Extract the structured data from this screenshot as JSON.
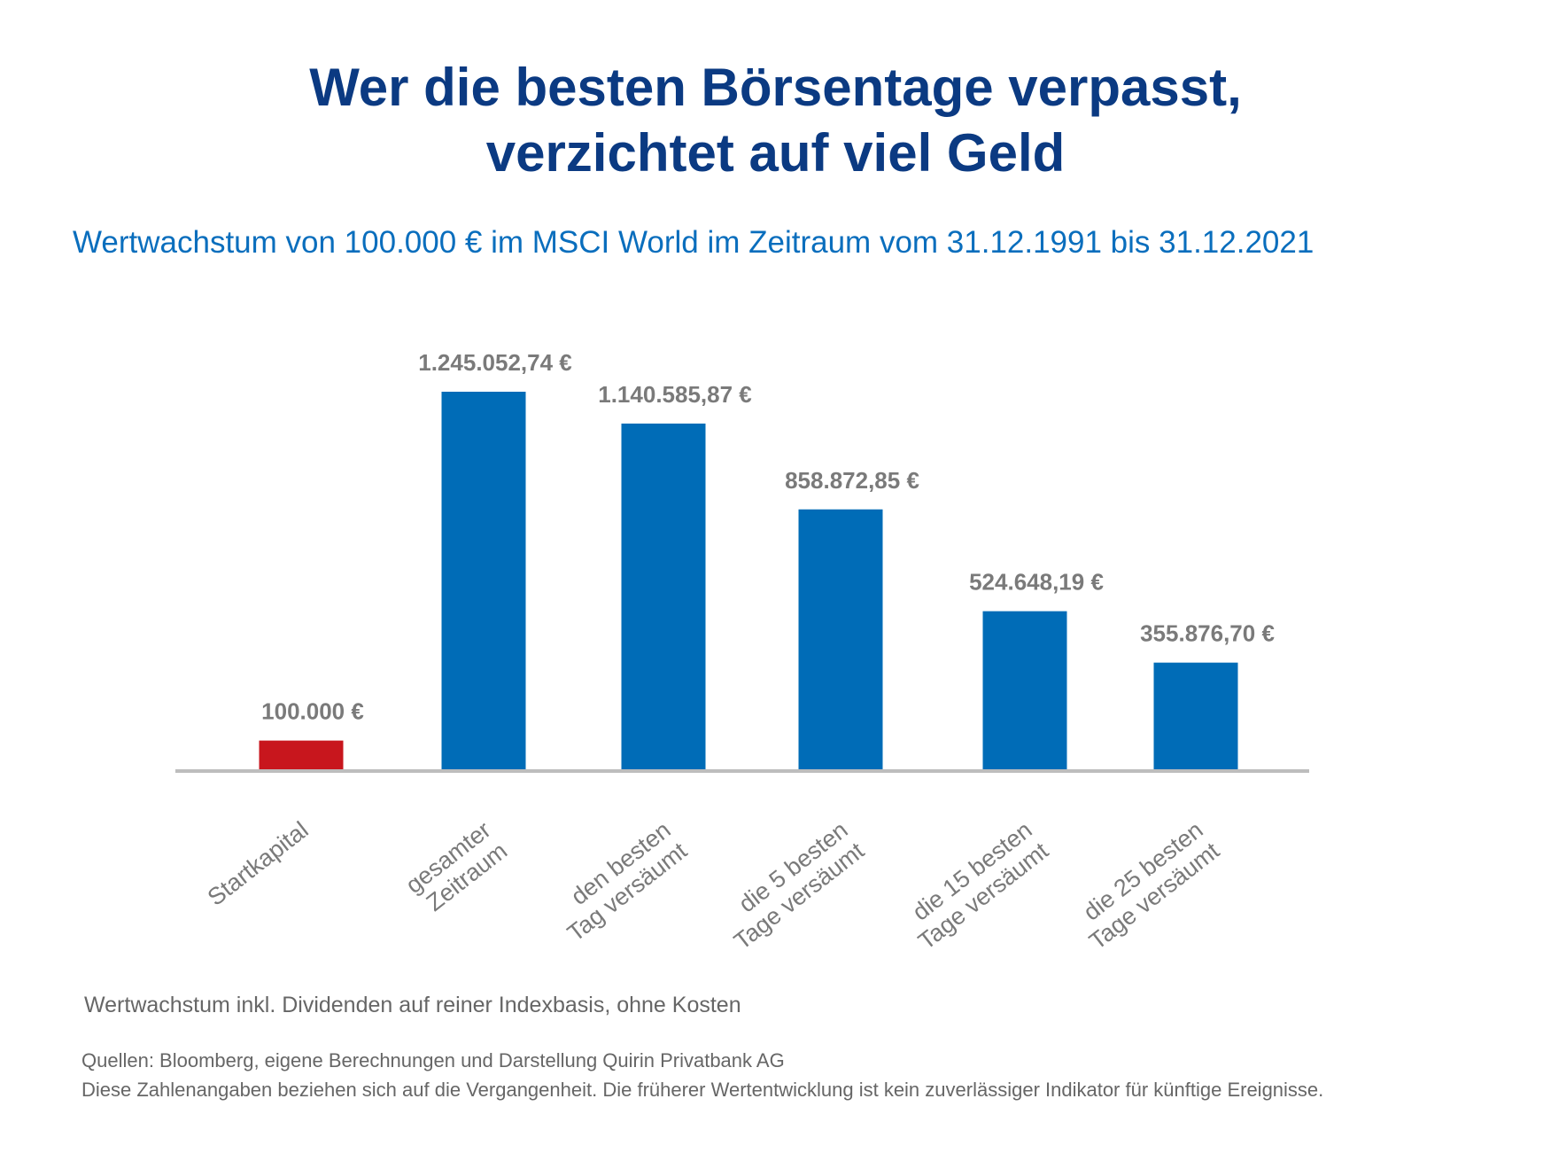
{
  "header": {
    "title_line1": "Wer die besten Börsentage verpasst,",
    "title_line2": "verzichtet auf viel Geld",
    "subtitle": "Wertwachstum von 100.000 € im MSCI World im Zeitraum vom 31.12.1991 bis 31.12.2021"
  },
  "chart_data": {
    "type": "bar",
    "categories": [
      [
        "Startkapital"
      ],
      [
        "gesamter",
        "Zeitraum"
      ],
      [
        "den besten",
        "Tag versäumt"
      ],
      [
        "die 5 besten",
        "Tage versäumt"
      ],
      [
        "die 15 besten",
        "Tage versäumt"
      ],
      [
        "die 25 besten",
        "Tage versäumt"
      ]
    ],
    "values": [
      100000,
      1245052.74,
      1140585.87,
      858872.85,
      524648.19,
      355876.7
    ],
    "value_labels": [
      "100.000 €",
      "1.245.052,74 €",
      "1.140.585,87 €",
      "858.872,85 €",
      "524.648,19 €",
      "355.876,70 €"
    ],
    "colors": [
      "#c8161d",
      "#006cb7",
      "#006cb7",
      "#006cb7",
      "#006cb7",
      "#006cb7"
    ],
    "label_color": "#7a7a7a",
    "axis_color": "#bdbdbd",
    "grid": false,
    "legend": "none",
    "ylim": [
      0,
      1245052.74
    ]
  },
  "footer": {
    "note": "Wertwachstum inkl. Dividenden auf reiner Indexbasis, ohne Kosten",
    "sources_line1": "Quellen: Bloomberg, eigene Berechnungen und Darstellung Quirin Privatbank AG",
    "sources_line2": "Diese Zahlenangaben beziehen sich auf die Vergangenheit. Die früherer Wertentwicklung ist kein zuverlässiger Indikator für künftige Ereignisse."
  }
}
